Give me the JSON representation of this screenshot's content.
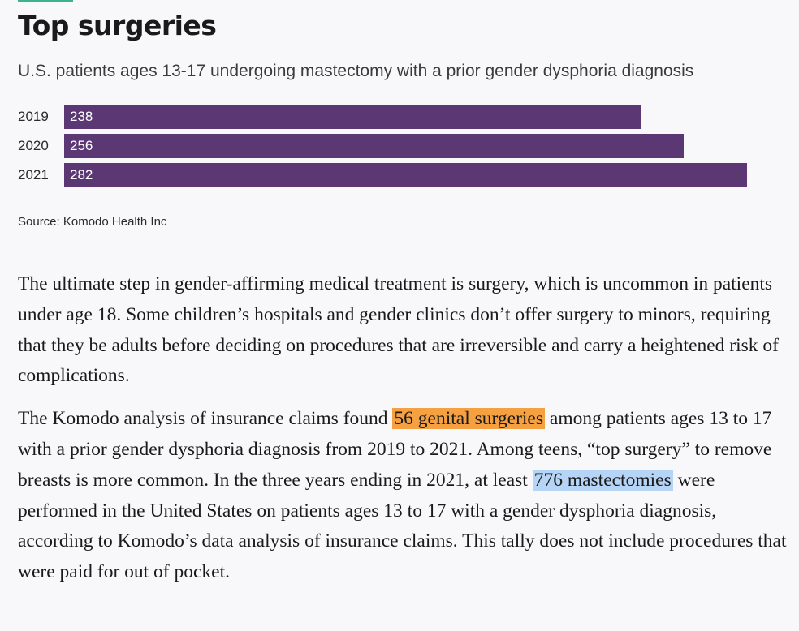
{
  "header": {
    "title": "Top surgeries",
    "subtitle": "U.S. patients ages 13-17 undergoing mastectomy with a prior gender dysphoria diagnosis"
  },
  "chart_data": {
    "type": "bar",
    "orientation": "horizontal",
    "title": "Top surgeries",
    "subtitle": "U.S. patients ages 13-17 undergoing mastectomy with a prior gender dysphoria diagnosis",
    "categories": [
      "2019",
      "2020",
      "2021"
    ],
    "values": [
      238,
      256,
      282
    ],
    "value_labels": [
      "238",
      "256",
      "282"
    ],
    "xlim": [
      0,
      282
    ],
    "bar_color": "#5b3774",
    "grid": false,
    "source": "Source: Komodo Health Inc"
  },
  "article": {
    "para1": "The ultimate step in gender-affirming medical treatment is surgery, which is uncommon in patients under age 18. Some children’s hospitals and gender clinics don’t offer surgery to minors, requiring that they be adults before deciding on procedures that are irreversible and carry a heightened risk of complications.",
    "para2_a": "The Komodo analysis of insurance claims found ",
    "para2_hl1": "56 genital surgeries",
    "para2_b": " among patients ages 13 to 17 with a prior gender dysphoria diagnosis from 2019 to 2021. Among teens, “top surgery” to remove breasts is more common. In the three years ending in 2021, at least ",
    "para2_hl2": "776 mastectomies",
    "para2_c": " were performed in the United States on patients ages 13 to 17 with a gender dysphoria diagnosis, according to Komodo’s data analysis of insurance claims. This tally does not include procedures that were paid for out of pocket.",
    "highlight_colors": {
      "genital": "#f5a041",
      "mastectomies": "#b6d4f6"
    }
  }
}
